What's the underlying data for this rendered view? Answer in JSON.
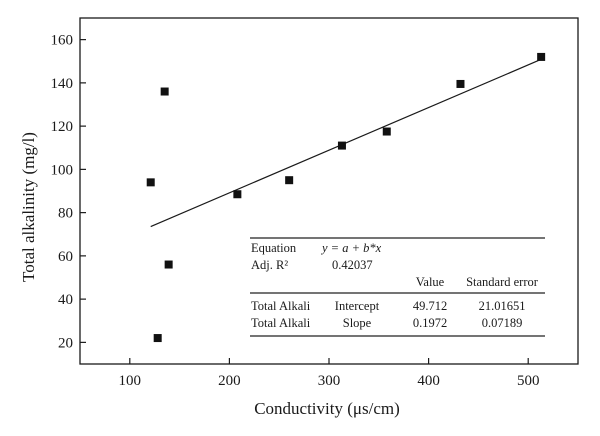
{
  "chart_data": {
    "type": "scatter",
    "xlabel": "Conductivity (μs/cm)",
    "ylabel": "Total alkalinity (mg/l)",
    "xlim": [
      50,
      550
    ],
    "ylim": [
      10,
      170
    ],
    "xticks": [
      100,
      200,
      300,
      400,
      500
    ],
    "yticks": [
      20,
      40,
      60,
      80,
      100,
      120,
      140,
      160
    ],
    "grid": false,
    "marker_color": "#111111",
    "points": [
      {
        "x": 121,
        "y": 94
      },
      {
        "x": 128,
        "y": 22
      },
      {
        "x": 135,
        "y": 136
      },
      {
        "x": 139,
        "y": 56
      },
      {
        "x": 208,
        "y": 88.5
      },
      {
        "x": 260,
        "y": 95
      },
      {
        "x": 313,
        "y": 111
      },
      {
        "x": 358,
        "y": 117.5
      },
      {
        "x": 432,
        "y": 139.5
      },
      {
        "x": 513,
        "y": 152
      }
    ],
    "fit_line": {
      "intercept": 49.712,
      "slope": 0.1972,
      "x_range": [
        121,
        513
      ]
    },
    "stats_table": {
      "equation_label": "Equation",
      "equation_text": "y = a + b*x",
      "adj_r2_label": "Adj. R²",
      "adj_r2_value": "0.42037",
      "headers": [
        "Value",
        "Standard error"
      ],
      "rows": [
        [
          "Total Alkali",
          "Intercept",
          "49.712",
          "21.01651"
        ],
        [
          "Total Alkali",
          "Slope",
          "0.1972",
          "0.07189"
        ]
      ]
    }
  }
}
